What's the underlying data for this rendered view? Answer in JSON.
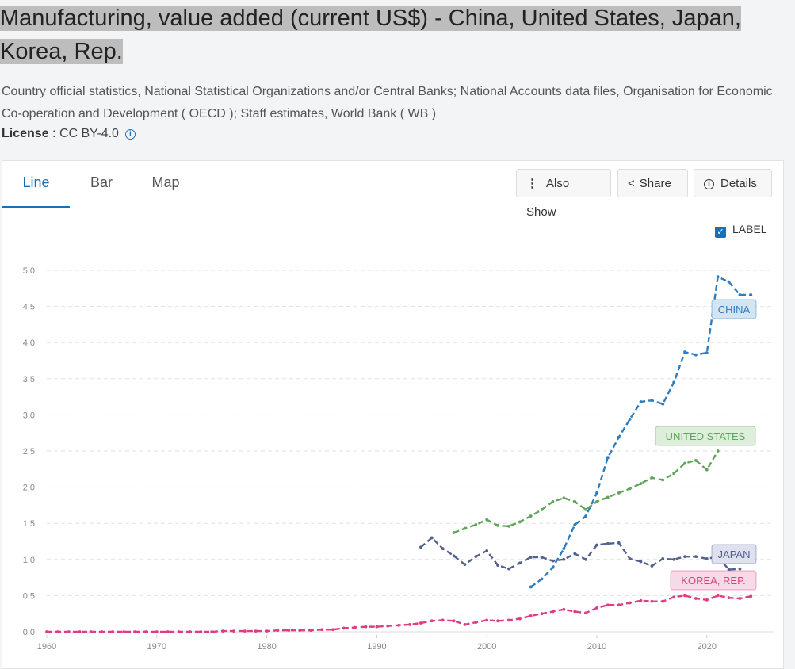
{
  "title": "Manufacturing, value added (current US$) - China, United States, Japan, Korea, Rep.",
  "source": "Country official statistics, National Statistical Organizations and/or Central Banks; National Accounts data files, Organisation for Economic Co-operation and Development ( OECD ); Staff estimates, World Bank ( WB )",
  "license": {
    "label": "License",
    "value": ": CC BY-4.0"
  },
  "tabs": [
    "Line",
    "Bar",
    "Map"
  ],
  "buttons": {
    "also_show": "Also Show",
    "share": "Share",
    "details": "Details"
  },
  "label_toggle": {
    "text": "LABEL",
    "checked": true
  },
  "chart_data": {
    "type": "line",
    "title": "",
    "ylim": [
      0,
      5
    ],
    "yticks": [
      "0.0",
      "0.5",
      "1.0",
      "1.5",
      "2.0",
      "2.5",
      "3.0",
      "3.5",
      "4.0",
      "4.5",
      "5.0"
    ],
    "xlim": [
      1960,
      2024
    ],
    "xticks": [
      "1960",
      "1970",
      "1980",
      "1990",
      "2000",
      "2010",
      "2020"
    ],
    "series": [
      {
        "name": "CHINA",
        "color": "#2e7dbf",
        "label_bg": "#d3e5f3",
        "start": 2004,
        "values": [
          0.62,
          0.73,
          0.89,
          1.15,
          1.48,
          1.6,
          1.92,
          2.41,
          2.69,
          2.94,
          3.18,
          3.2,
          3.15,
          3.45,
          3.87,
          3.83,
          3.86,
          4.91,
          4.84,
          4.66,
          4.66
        ]
      },
      {
        "name": "UNITED STATES",
        "color": "#5fa55a",
        "label_bg": "#ddeedb",
        "start": 1997,
        "values": [
          1.37,
          1.43,
          1.48,
          1.55,
          1.47,
          1.46,
          1.52,
          1.6,
          1.69,
          1.8,
          1.85,
          1.8,
          1.69,
          1.8,
          1.86,
          1.92,
          1.98,
          2.05,
          2.13,
          2.1,
          2.19,
          2.33,
          2.37,
          2.24,
          2.5
        ]
      },
      {
        "name": "JAPAN",
        "color": "#52628f",
        "label_bg": "#dfe2ee",
        "start": 1994,
        "values": [
          1.17,
          1.3,
          1.15,
          1.05,
          0.93,
          1.04,
          1.12,
          0.92,
          0.87,
          0.95,
          1.03,
          1.03,
          0.98,
          1.0,
          1.08,
          1.0,
          1.2,
          1.22,
          1.23,
          1.01,
          0.97,
          0.91,
          1.01,
          1.0,
          1.04,
          1.04,
          1.01,
          1.04,
          0.86,
          0.87
        ]
      },
      {
        "name": "KOREA, REP.",
        "color": "#e03c84",
        "label_bg": "#f6dbe6",
        "start": 1960,
        "values": [
          0,
          0,
          0,
          0,
          0,
          0,
          0,
          0,
          0,
          0,
          0,
          0,
          0,
          0,
          0,
          0,
          0.01,
          0.01,
          0.01,
          0.01,
          0.01,
          0.02,
          0.02,
          0.02,
          0.02,
          0.03,
          0.03,
          0.05,
          0.06,
          0.07,
          0.07,
          0.08,
          0.09,
          0.1,
          0.12,
          0.15,
          0.16,
          0.15,
          0.1,
          0.13,
          0.16,
          0.15,
          0.16,
          0.18,
          0.22,
          0.25,
          0.28,
          0.31,
          0.28,
          0.26,
          0.33,
          0.37,
          0.37,
          0.4,
          0.43,
          0.42,
          0.42,
          0.48,
          0.5,
          0.46,
          0.44,
          0.5,
          0.47,
          0.46,
          0.49
        ]
      }
    ]
  }
}
